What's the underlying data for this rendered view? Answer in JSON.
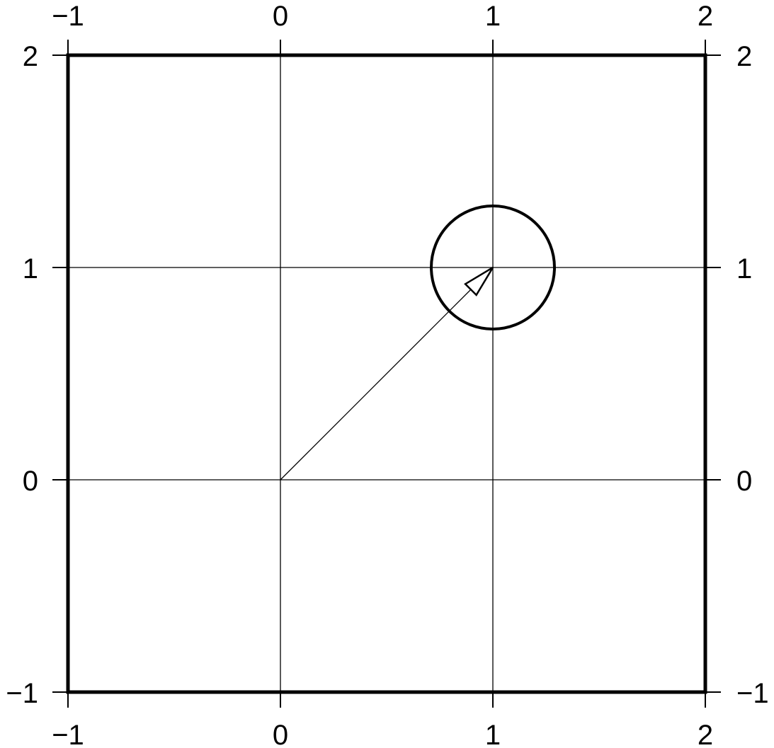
{
  "chart_data": {
    "type": "scatter",
    "xlim": [
      -1,
      2
    ],
    "ylim": [
      -1,
      2
    ],
    "grid": true,
    "x_ticks": [
      -1,
      0,
      1,
      2
    ],
    "y_ticks": [
      -1,
      0,
      1,
      2
    ],
    "x_tick_labels": [
      "−1",
      "0",
      "1",
      "2"
    ],
    "y_tick_labels": [
      "−1",
      "0",
      "1",
      "2"
    ],
    "axes_labeled": [
      "bottom",
      "top",
      "left",
      "right"
    ],
    "vector": {
      "from": [
        0,
        0
      ],
      "to": [
        1,
        1
      ],
      "head": "open-triangle"
    },
    "circle": {
      "center": [
        1,
        1
      ],
      "radius": 0.29
    }
  },
  "colors": {
    "foreground": "#000000",
    "background": "#ffffff"
  }
}
